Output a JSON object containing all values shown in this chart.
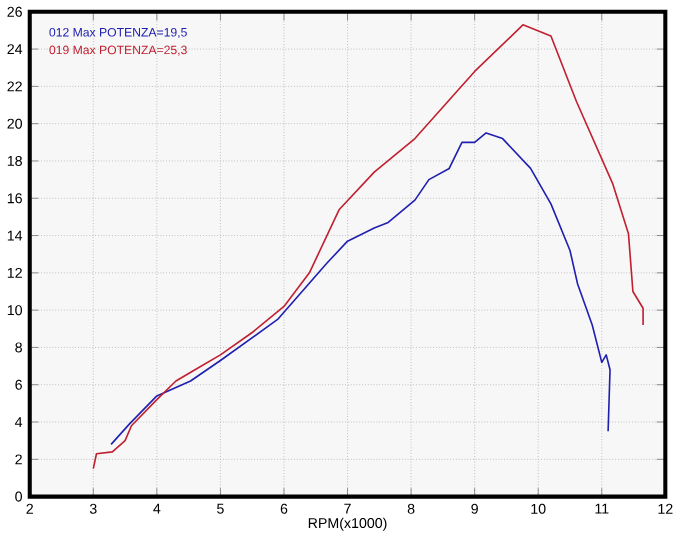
{
  "chart_data": {
    "type": "line",
    "xlabel": "RPM(x1000)",
    "xlim": [
      2,
      12
    ],
    "ylim": [
      0,
      26
    ],
    "xticks": [
      2,
      3,
      4,
      5,
      6,
      7,
      8,
      9,
      10,
      11,
      12
    ],
    "yticks": [
      0,
      2,
      4,
      6,
      8,
      10,
      12,
      14,
      16,
      18,
      20,
      22,
      24,
      26
    ],
    "grid": true,
    "legend": "top left",
    "line_style": "solid",
    "marker": "none",
    "series": [
      {
        "name": "012  Max POTENZA=19,5",
        "color": "#2020b0",
        "x": [
          3.28,
          3.57,
          4.0,
          4.53,
          5.0,
          5.9,
          6.67,
          7.0,
          7.42,
          7.64,
          8.06,
          8.28,
          8.6,
          8.8,
          9.0,
          9.18,
          9.44,
          9.88,
          10.2,
          10.5,
          10.62,
          10.85,
          11.0,
          11.07,
          11.13,
          11.1
        ],
        "values": [
          2.8,
          3.9,
          5.4,
          6.2,
          7.3,
          9.5,
          12.5,
          13.7,
          14.4,
          14.7,
          15.9,
          17.0,
          17.6,
          19.0,
          19.0,
          19.5,
          19.2,
          17.6,
          15.7,
          13.2,
          11.4,
          9.2,
          7.2,
          7.6,
          6.8,
          3.5
        ]
      },
      {
        "name": "019  Max POTENZA=25,3",
        "color": "#c02030",
        "x": [
          3.0,
          3.05,
          3.3,
          3.5,
          3.6,
          4.0,
          4.3,
          4.6,
          5.0,
          5.5,
          6.0,
          6.4,
          6.87,
          7.42,
          8.06,
          9.0,
          9.76,
          10.2,
          10.6,
          11.17,
          11.42,
          11.49,
          11.65,
          11.65
        ],
        "values": [
          1.5,
          2.3,
          2.4,
          3.0,
          3.8,
          5.2,
          6.2,
          6.8,
          7.6,
          8.8,
          10.2,
          12.0,
          15.4,
          17.4,
          19.2,
          22.8,
          25.3,
          24.7,
          21.2,
          16.8,
          14.1,
          11.0,
          10.1,
          9.2
        ]
      }
    ]
  }
}
